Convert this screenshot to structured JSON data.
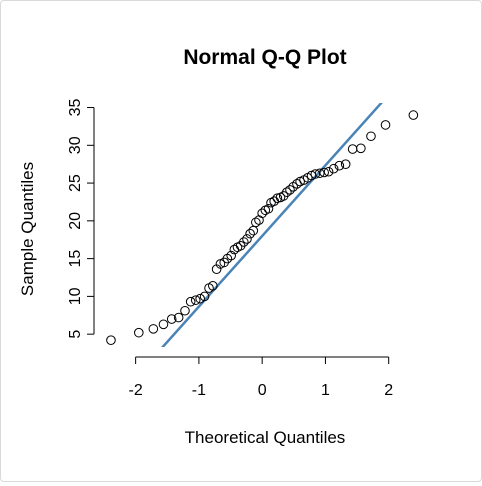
{
  "chart_data": {
    "type": "scatter",
    "title": "Normal Q-Q Plot",
    "xlabel": "Theoretical Quantiles",
    "ylabel": "Sample Quantiles",
    "xlim": [
      -2.5,
      2.4
    ],
    "ylim": [
      3.3,
      35.6
    ],
    "xticks": [
      "-2",
      "-1",
      "0",
      "1",
      "2"
    ],
    "yticks": [
      "5",
      "10",
      "15",
      "20",
      "25",
      "30",
      "35"
    ],
    "grid": false,
    "legend": "none",
    "point_color": "#000000",
    "line_color": "#4a84b7",
    "qq_line": {
      "intercept": 18.0,
      "slope": 9.35
    },
    "points": [
      {
        "x": -2.39,
        "y": 4.2
      },
      {
        "x": -1.95,
        "y": 5.2
      },
      {
        "x": -1.72,
        "y": 5.7
      },
      {
        "x": -1.56,
        "y": 6.3
      },
      {
        "x": -1.43,
        "y": 7.0
      },
      {
        "x": -1.32,
        "y": 7.2
      },
      {
        "x": -1.22,
        "y": 8.1
      },
      {
        "x": -1.13,
        "y": 9.3
      },
      {
        "x": -1.05,
        "y": 9.5
      },
      {
        "x": -0.98,
        "y": 9.7
      },
      {
        "x": -0.91,
        "y": 10.0
      },
      {
        "x": -0.84,
        "y": 11.1
      },
      {
        "x": -0.78,
        "y": 11.4
      },
      {
        "x": -0.72,
        "y": 13.6
      },
      {
        "x": -0.66,
        "y": 14.3
      },
      {
        "x": -0.6,
        "y": 14.5
      },
      {
        "x": -0.55,
        "y": 15.0
      },
      {
        "x": -0.49,
        "y": 15.4
      },
      {
        "x": -0.44,
        "y": 16.2
      },
      {
        "x": -0.39,
        "y": 16.5
      },
      {
        "x": -0.34,
        "y": 16.7
      },
      {
        "x": -0.29,
        "y": 17.2
      },
      {
        "x": -0.24,
        "y": 17.6
      },
      {
        "x": -0.19,
        "y": 18.3
      },
      {
        "x": -0.14,
        "y": 18.7
      },
      {
        "x": -0.1,
        "y": 19.8
      },
      {
        "x": -0.05,
        "y": 20.1
      },
      {
        "x": 0.0,
        "y": 21.0
      },
      {
        "x": 0.05,
        "y": 21.4
      },
      {
        "x": 0.1,
        "y": 21.6
      },
      {
        "x": 0.14,
        "y": 22.4
      },
      {
        "x": 0.19,
        "y": 22.6
      },
      {
        "x": 0.24,
        "y": 23.0
      },
      {
        "x": 0.29,
        "y": 23.1
      },
      {
        "x": 0.34,
        "y": 23.3
      },
      {
        "x": 0.39,
        "y": 23.8
      },
      {
        "x": 0.44,
        "y": 24.1
      },
      {
        "x": 0.49,
        "y": 24.5
      },
      {
        "x": 0.55,
        "y": 24.9
      },
      {
        "x": 0.6,
        "y": 25.2
      },
      {
        "x": 0.66,
        "y": 25.4
      },
      {
        "x": 0.72,
        "y": 25.7
      },
      {
        "x": 0.78,
        "y": 26.0
      },
      {
        "x": 0.84,
        "y": 26.2
      },
      {
        "x": 0.91,
        "y": 26.3
      },
      {
        "x": 0.98,
        "y": 26.4
      },
      {
        "x": 1.05,
        "y": 26.5
      },
      {
        "x": 1.13,
        "y": 26.9
      },
      {
        "x": 1.22,
        "y": 27.3
      },
      {
        "x": 1.32,
        "y": 27.5
      },
      {
        "x": 1.43,
        "y": 29.5
      },
      {
        "x": 1.56,
        "y": 29.6
      },
      {
        "x": 1.72,
        "y": 31.2
      },
      {
        "x": 1.95,
        "y": 32.7
      },
      {
        "x": 2.39,
        "y": 34.0
      }
    ]
  }
}
